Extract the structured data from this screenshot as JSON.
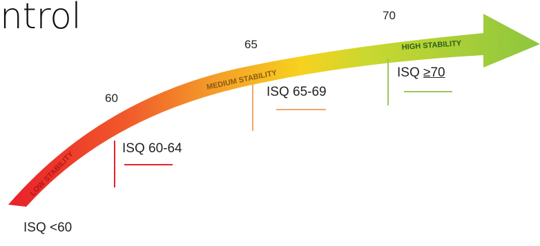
{
  "title": "ntrol",
  "arrow": {
    "labels": {
      "low": "LOW STABILITY",
      "medium": "MEDIUM STABILITY",
      "high": "HIGH STABILITY"
    },
    "gradient_colors": [
      "#e8202a",
      "#f07a28",
      "#f6c51c",
      "#d9de2a",
      "#8cc63f"
    ]
  },
  "thresholds": {
    "t60": "60",
    "t65": "65",
    "t70": "70"
  },
  "ranges": {
    "r_lt60": "ISQ <60",
    "r_60_64": "ISQ 60-64",
    "r_65_69": "ISQ 65-69",
    "r_ge70_prefix": "ISQ ",
    "r_ge70_value": "≥70"
  },
  "colors": {
    "red": "#e8202a",
    "orange": "#f2a56a",
    "green": "#9bc759"
  }
}
